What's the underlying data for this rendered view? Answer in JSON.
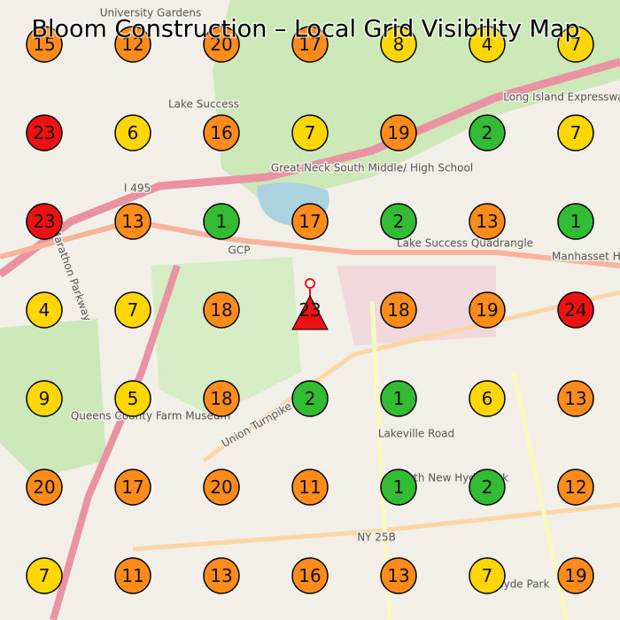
{
  "title": "Bloom Construction – Local Grid Visibility Map",
  "grid": {
    "rows": [
      [
        15,
        12,
        20,
        17,
        8,
        4,
        7
      ],
      [
        23,
        6,
        16,
        7,
        19,
        2,
        7
      ],
      [
        23,
        13,
        1,
        17,
        2,
        13,
        1
      ],
      [
        4,
        7,
        18,
        null,
        18,
        19,
        24
      ],
      [
        9,
        5,
        18,
        2,
        1,
        6,
        13
      ],
      [
        20,
        17,
        20,
        11,
        1,
        2,
        12
      ],
      [
        7,
        11,
        13,
        16,
        13,
        7,
        19
      ]
    ],
    "colors": [
      [
        "#ff8c1a",
        "#ff8c1a",
        "#ff8c1a",
        "#ff8c1a",
        "#ffd700",
        "#ffd700",
        "#ffd700"
      ],
      [
        "#ee1111",
        "#ffd700",
        "#ff8c1a",
        "#ffd700",
        "#ff8c1a",
        "#33bb33",
        "#ffd700"
      ],
      [
        "#ee1111",
        "#ff8c1a",
        "#33bb33",
        "#ff8c1a",
        "#33bb33",
        "#ff8c1a",
        "#33bb33"
      ],
      [
        "#ffd700",
        "#ffd700",
        "#ff8c1a",
        null,
        "#ff8c1a",
        "#ff8c1a",
        "#ee1111"
      ],
      [
        "#ffd700",
        "#ffd700",
        "#ff8c1a",
        "#33bb33",
        "#33bb33",
        "#ffd700",
        "#ff8c1a"
      ],
      [
        "#ff8c1a",
        "#ff8c1a",
        "#ff8c1a",
        "#ff8c1a",
        "#33bb33",
        "#33bb33",
        "#ff8c1a"
      ],
      [
        "#ffd700",
        "#ff8c1a",
        "#ff8c1a",
        "#ff8c1a",
        "#ff8c1a",
        "#ffd700",
        "#ff8c1a"
      ]
    ]
  },
  "site": {
    "value": 23,
    "color": "#ee1111"
  },
  "map_labels": [
    "University Gardens",
    "Lake Success",
    "Great Neck South Middle/ High School",
    "Lake Success Quadrangle",
    "Manhasset Hills",
    "Queens County Farm Museum",
    "North New Hyde Park",
    "Hyde Park",
    "Long Island Expressway",
    "Union Turnpike",
    "Lakeville Road",
    "NY 25B",
    "GCP",
    "I 495",
    "Marathon Parkway"
  ]
}
